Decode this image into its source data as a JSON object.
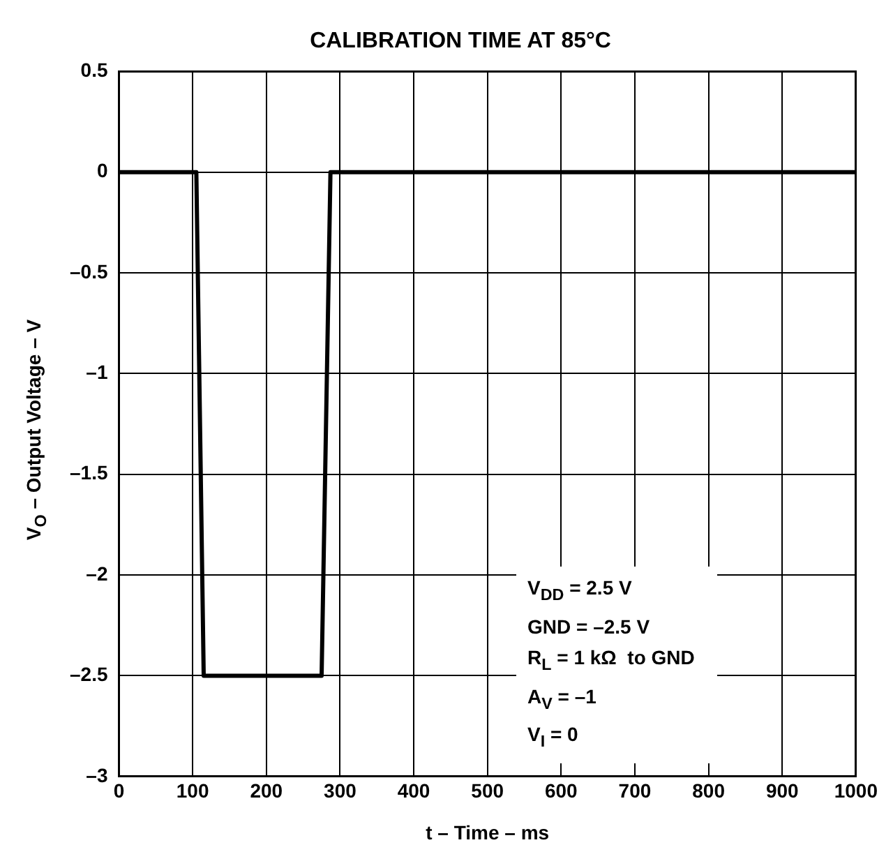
{
  "chart_data": {
    "type": "line",
    "title": "CALIBRATION TIME AT 85°C",
    "xlabel": "t – Time – ms",
    "ylabel": "V$_{O}$ – Output Voltage – V",
    "x": [
      0,
      105,
      115,
      275,
      287,
      1000
    ],
    "series": [
      {
        "color": "#000000",
        "values": [
          0,
          0,
          -2.5,
          -2.5,
          0,
          0
        ]
      }
    ],
    "xlim": [
      0,
      1000
    ],
    "xticks": [
      0,
      100,
      200,
      300,
      400,
      500,
      600,
      700,
      800,
      900,
      1000
    ],
    "ylim": [
      -3,
      0.5
    ],
    "yticks": [
      0.5,
      0,
      {
        "value": -0.5,
        "label": "–0.5"
      },
      {
        "value": -1,
        "label": "–1"
      },
      {
        "value": -1.5,
        "label": "–1.5"
      },
      {
        "value": -2,
        "label": "–2"
      },
      {
        "value": -2.5,
        "label": "–2.5"
      },
      {
        "value": -3,
        "label": "–3"
      }
    ],
    "grid": true,
    "legend": false,
    "marker": "none",
    "line_style": "solid",
    "annotations": [
      "V$_{DD}$ = 2.5 V",
      "GND = –2.5 V",
      "R$_{L}$ = 1 kΩ  to GND",
      "A$_{V}$ = –1",
      "V$_{I}$ = 0"
    ]
  }
}
